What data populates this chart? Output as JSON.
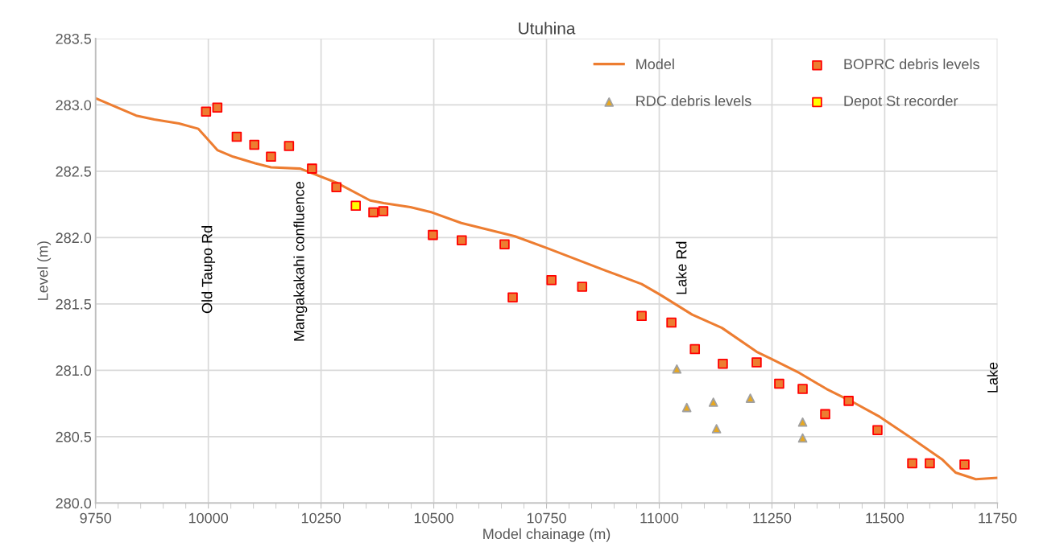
{
  "chart_data": {
    "type": "scatter",
    "title": "Utuhina",
    "xlabel": "Model chainage (m)",
    "ylabel": "Level (m)",
    "xlim": [
      9750,
      11750
    ],
    "xticks": [
      9750,
      10000,
      10250,
      10500,
      10750,
      11000,
      11250,
      11500,
      11750
    ],
    "ylim": [
      280.0,
      283.5
    ],
    "yticks": [
      {
        "value": 280.0,
        "label": "280.0"
      },
      {
        "value": 280.5,
        "label": "280.5"
      },
      {
        "value": 281.0,
        "label": "281.0"
      },
      {
        "value": 281.5,
        "label": "281.5"
      },
      {
        "value": 282.0,
        "label": "282.0"
      },
      {
        "value": 282.5,
        "label": "282.5"
      },
      {
        "value": 283.0,
        "label": "283.0"
      },
      {
        "value": 283.5,
        "label": "283.5"
      }
    ],
    "grid": true,
    "legend": "top right",
    "series": [
      {
        "name": "Model",
        "type": "line",
        "color": "#ed7d31",
        "marker": "none",
        "line_style": "solid",
        "x": [
          9750,
          9840,
          9880,
          9935,
          9978,
          10020,
          10055,
          10104,
          10139,
          10204,
          10287,
          10359,
          10389,
          10448,
          10496,
          10561,
          10680,
          10752,
          10882,
          10961,
          11002,
          11073,
          11139,
          11216,
          11252,
          11311,
          11371,
          11430,
          11489,
          11555,
          11627,
          11657,
          11702,
          11748
        ],
        "values": [
          283.05,
          282.92,
          282.89,
          282.86,
          282.82,
          282.66,
          282.61,
          282.56,
          282.53,
          282.52,
          282.41,
          282.28,
          282.26,
          282.23,
          282.19,
          282.11,
          282.01,
          281.92,
          281.75,
          281.65,
          281.57,
          281.42,
          281.32,
          281.14,
          281.08,
          280.98,
          280.86,
          280.76,
          280.65,
          280.5,
          280.33,
          280.23,
          280.18,
          280.19
        ]
      },
      {
        "name": "BOPRC debris levels",
        "color": "#ed7d31",
        "marker": "square",
        "x": [
          9995,
          10020,
          10063,
          10102,
          10139,
          10179,
          10230,
          10284,
          10366,
          10388,
          10498,
          10562,
          10657,
          10675,
          10761,
          10829,
          10961,
          11027,
          11079,
          11141,
          11216,
          11266,
          11318,
          11368,
          11420,
          11484,
          11561,
          11600,
          11677
        ],
        "values": [
          282.95,
          282.98,
          282.76,
          282.7,
          282.61,
          282.69,
          282.52,
          282.38,
          282.19,
          282.2,
          282.02,
          281.98,
          281.95,
          281.55,
          281.68,
          281.63,
          281.41,
          281.36,
          281.16,
          281.05,
          281.06,
          280.9,
          280.86,
          280.67,
          280.77,
          280.55,
          280.3,
          280.3,
          280.29
        ]
      },
      {
        "name": "RDC debris levels",
        "color": "#e8a820",
        "marker": "triangle",
        "x": [
          11039,
          11061,
          11120,
          11127,
          11202,
          11318,
          11318
        ],
        "values": [
          281.01,
          280.72,
          280.76,
          280.56,
          280.79,
          280.61,
          280.49
        ]
      },
      {
        "name": "Depot St recorder",
        "color": "#ffff00",
        "marker": "square",
        "x": [
          10327
        ],
        "values": [
          282.24
        ]
      }
    ],
    "annotations": [
      "Old Taupo Rd",
      "Mangakakahi confluence",
      "Lake Rd",
      "Lake"
    ]
  }
}
